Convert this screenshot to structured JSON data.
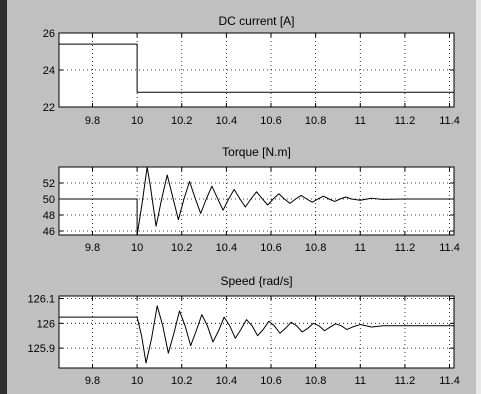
{
  "chart_data": [
    {
      "type": "line",
      "title": "DC current [A]",
      "xlabel": "",
      "ylabel": "",
      "xlim": [
        9.65,
        11.42
      ],
      "ylim": [
        22,
        26
      ],
      "xticks": [
        9.8,
        10,
        10.2,
        10.4,
        10.6,
        10.8,
        11,
        11.2,
        11.4
      ],
      "xtick_labels": [
        "9.8",
        "10",
        "10.2",
        "10.4",
        "10.6",
        "10.8",
        "11",
        "11.2",
        "11.4"
      ],
      "yticks": [
        22,
        24,
        26
      ],
      "ytick_labels": [
        "22",
        "24",
        "26"
      ],
      "grid": true,
      "series": [
        {
          "x": [
            9.65,
            10.0,
            10.0,
            11.42
          ],
          "y": [
            25.4,
            25.4,
            22.8,
            22.8
          ]
        }
      ]
    },
    {
      "type": "line",
      "title": "Torque [N.m]",
      "xlabel": "",
      "ylabel": "",
      "xlim": [
        9.65,
        11.42
      ],
      "ylim": [
        45.5,
        54
      ],
      "xticks": [
        9.8,
        10,
        10.2,
        10.4,
        10.6,
        10.8,
        11,
        11.2,
        11.4
      ],
      "xtick_labels": [
        "9.8",
        "10",
        "10.2",
        "10.4",
        "10.6",
        "10.8",
        "11",
        "11.2",
        "11.4"
      ],
      "yticks": [
        46,
        48,
        50,
        52
      ],
      "ytick_labels": [
        "46",
        "48",
        "50",
        "52"
      ],
      "grid": true,
      "series": [
        {
          "x": [
            9.65,
            10.0,
            10.0,
            10.02,
            10.045,
            10.06,
            10.085,
            10.11,
            10.135,
            10.16,
            10.185,
            10.21,
            10.235,
            10.26,
            10.285,
            10.31,
            10.335,
            10.36,
            10.385,
            10.41,
            10.435,
            10.46,
            10.485,
            10.51,
            10.535,
            10.56,
            10.585,
            10.61,
            10.635,
            10.66,
            10.685,
            10.71,
            10.735,
            10.76,
            10.785,
            10.81,
            10.835,
            10.86,
            10.885,
            10.91,
            10.935,
            10.96,
            11.0,
            11.05,
            11.1,
            11.2,
            11.3,
            11.42
          ],
          "y": [
            50.0,
            50.0,
            45.5,
            49.0,
            54.0,
            51.5,
            46.6,
            50.0,
            53.0,
            50.2,
            47.4,
            50.0,
            52.2,
            50.1,
            48.2,
            50.0,
            51.6,
            50.1,
            48.6,
            50.0,
            51.2,
            50.05,
            49.0,
            50.0,
            50.9,
            50.05,
            49.25,
            50.0,
            50.65,
            50.0,
            49.45,
            50.0,
            50.45,
            50.0,
            49.6,
            50.0,
            50.35,
            50.0,
            49.7,
            50.0,
            50.25,
            50.0,
            49.85,
            50.1,
            49.95,
            50.0,
            50.0,
            50.0
          ]
        }
      ]
    },
    {
      "type": "line",
      "title": "Speed {rad/s]",
      "xlabel": "",
      "ylabel": "",
      "xlim": [
        9.65,
        11.42
      ],
      "ylim": [
        125.82,
        126.11
      ],
      "xticks": [
        9.8,
        10,
        10.2,
        10.4,
        10.6,
        10.8,
        11,
        11.2,
        11.4
      ],
      "xtick_labels": [
        "9.8",
        "10",
        "10.2",
        "10.4",
        "10.6",
        "10.8",
        "11",
        "11.2",
        "11.4"
      ],
      "yticks": [
        125.9,
        126,
        126.1
      ],
      "ytick_labels": [
        "125.9",
        "126",
        "126.1"
      ],
      "grid": true,
      "series": [
        {
          "x": [
            9.65,
            10.0,
            10.02,
            10.04,
            10.065,
            10.09,
            10.115,
            10.14,
            10.165,
            10.19,
            10.215,
            10.24,
            10.265,
            10.29,
            10.315,
            10.34,
            10.365,
            10.39,
            10.415,
            10.44,
            10.465,
            10.49,
            10.515,
            10.54,
            10.565,
            10.59,
            10.615,
            10.64,
            10.665,
            10.69,
            10.715,
            10.74,
            10.765,
            10.79,
            10.815,
            10.84,
            10.865,
            10.89,
            10.915,
            10.94,
            10.965,
            11.0,
            11.05,
            11.1,
            11.2,
            11.3,
            11.42
          ],
          "y": [
            126.025,
            126.025,
            125.95,
            125.84,
            125.94,
            126.07,
            125.99,
            125.88,
            125.96,
            126.05,
            125.99,
            125.91,
            125.97,
            126.035,
            125.99,
            125.925,
            125.97,
            126.025,
            125.99,
            125.94,
            125.975,
            126.015,
            125.99,
            125.95,
            125.975,
            126.008,
            125.99,
            125.96,
            125.98,
            126.004,
            125.99,
            125.965,
            125.98,
            126.0,
            125.99,
            125.97,
            125.985,
            125.998,
            125.99,
            125.975,
            125.985,
            125.995,
            125.985,
            125.99,
            125.99,
            125.99,
            125.99
          ]
        }
      ]
    }
  ]
}
